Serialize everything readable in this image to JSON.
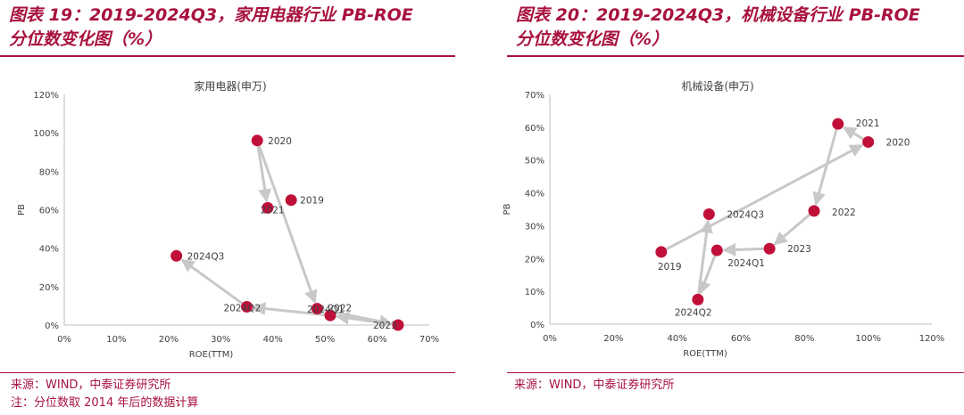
{
  "panels": [
    {
      "heading_line1": "图表 19：2019-2024Q3，家用电器行业 PB-ROE",
      "heading_line2": "分位数变化图（%）"
    },
    {
      "heading_line1": "图表 20：2019-2024Q3，机械设备行业 PB-ROE",
      "heading_line2": "分位数变化图（%）"
    }
  ],
  "notes": {
    "left_source": "来源：WIND，中泰证券研究所",
    "left_footnote": "注：分位数取 2014 年后的数据计算",
    "right_source": "来源：WIND，中泰证券研究所"
  },
  "colors": {
    "accent": "#a8123e",
    "marker": "#c0103a",
    "arrow": "#c8c8c8",
    "axis": "#bfbfbf",
    "text": "#404040"
  },
  "chart_data": [
    {
      "type": "scatter",
      "title": "家用电器(申万)",
      "xlabel": "ROE(TTM)",
      "ylabel": "PB",
      "xlim": [
        0,
        70
      ],
      "ylim": [
        0,
        120
      ],
      "xticks": [
        0,
        10,
        20,
        30,
        40,
        50,
        60,
        70
      ],
      "yticks": [
        0,
        20,
        40,
        60,
        80,
        100,
        120
      ],
      "tick_suffix": "%",
      "points": [
        {
          "label": "2019",
          "x": 43.5,
          "y": 65
        },
        {
          "label": "2020",
          "x": 37,
          "y": 96
        },
        {
          "label": "2021",
          "x": 39,
          "y": 61
        },
        {
          "label": "2022",
          "x": 48.5,
          "y": 8.5
        },
        {
          "label": "2023",
          "x": 64,
          "y": 0
        },
        {
          "label": "2024Q1",
          "x": 51,
          "y": 5
        },
        {
          "label": "2024Q2",
          "x": 35,
          "y": 9.5
        },
        {
          "label": "2024Q3",
          "x": 21.5,
          "y": 36
        }
      ],
      "arrows": [
        [
          1,
          2
        ],
        [
          1,
          3
        ],
        [
          3,
          4
        ],
        [
          4,
          5
        ],
        [
          5,
          6
        ],
        [
          6,
          7
        ]
      ]
    },
    {
      "type": "scatter",
      "title": "机械设备(申万)",
      "xlabel": "ROE(TTM)",
      "ylabel": "PB",
      "xlim": [
        0,
        120
      ],
      "ylim": [
        0,
        70
      ],
      "xticks": [
        0,
        20,
        40,
        60,
        80,
        100,
        120
      ],
      "yticks": [
        0,
        10,
        20,
        30,
        40,
        50,
        60,
        70
      ],
      "tick_suffix": "%",
      "points": [
        {
          "label": "2019",
          "x": 35,
          "y": 22
        },
        {
          "label": "2020",
          "x": 100,
          "y": 55.5
        },
        {
          "label": "2021",
          "x": 90.5,
          "y": 61
        },
        {
          "label": "2022",
          "x": 83,
          "y": 34.5
        },
        {
          "label": "2023",
          "x": 69,
          "y": 23
        },
        {
          "label": "2024Q1",
          "x": 52.5,
          "y": 22.5
        },
        {
          "label": "2024Q2",
          "x": 46.5,
          "y": 7.5
        },
        {
          "label": "2024Q3",
          "x": 50,
          "y": 33.5
        }
      ],
      "arrows": [
        [
          0,
          1
        ],
        [
          1,
          2
        ],
        [
          2,
          3
        ],
        [
          3,
          4
        ],
        [
          4,
          5
        ],
        [
          5,
          6
        ],
        [
          6,
          7
        ]
      ]
    }
  ]
}
